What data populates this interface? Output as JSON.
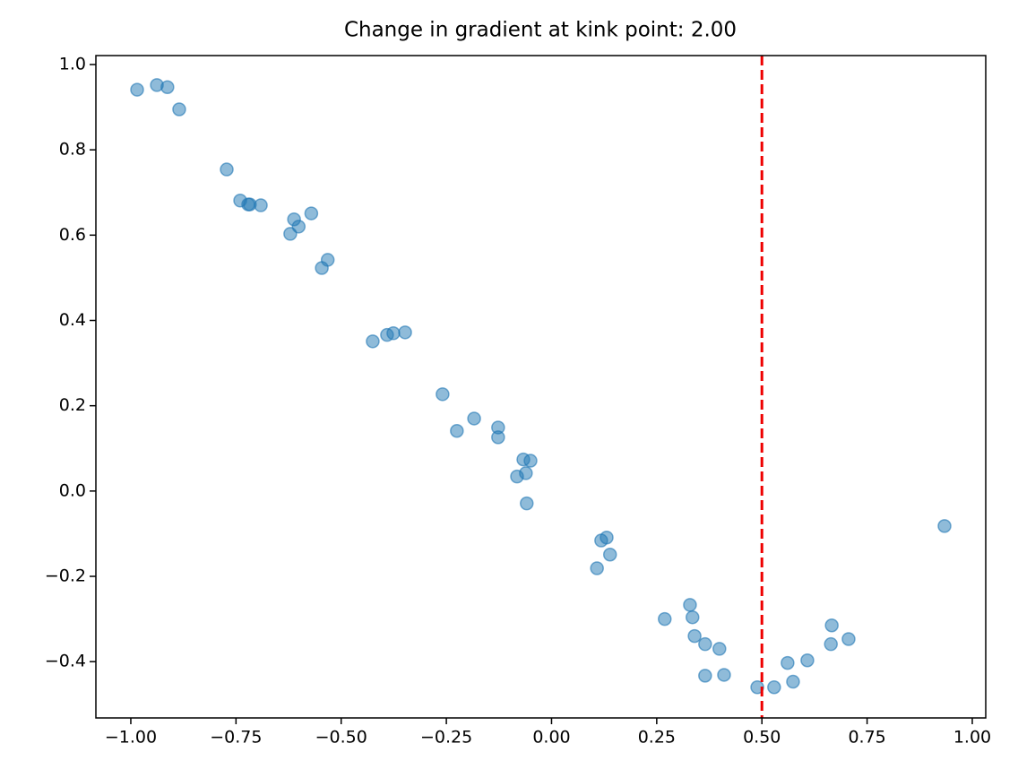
{
  "chart_data": {
    "type": "scatter",
    "title": "Change in gradient at kink point: 2.00",
    "x": [
      -0.985,
      -0.938,
      -0.913,
      -0.885,
      -0.772,
      -0.74,
      -0.721,
      -0.717,
      -0.691,
      -0.612,
      -0.601,
      -0.571,
      -0.621,
      -0.532,
      -0.546,
      -0.425,
      -0.391,
      -0.376,
      -0.348,
      -0.259,
      -0.225,
      -0.184,
      -0.127,
      -0.127,
      -0.067,
      -0.05,
      -0.061,
      -0.082,
      -0.059,
      0.118,
      0.131,
      0.139,
      0.108,
      0.269,
      0.329,
      0.335,
      0.34,
      0.365,
      0.399,
      0.365,
      0.41,
      0.489,
      0.529,
      0.561,
      0.574,
      0.608,
      0.666,
      0.664,
      0.706,
      0.934
    ],
    "values": [
      0.941,
      0.952,
      0.947,
      0.895,
      0.754,
      0.681,
      0.672,
      0.672,
      0.67,
      0.637,
      0.62,
      0.651,
      0.603,
      0.542,
      0.523,
      0.351,
      0.366,
      0.37,
      0.372,
      0.227,
      0.141,
      0.17,
      0.149,
      0.126,
      0.074,
      0.071,
      0.042,
      0.034,
      -0.029,
      -0.116,
      -0.109,
      -0.149,
      -0.181,
      -0.3,
      -0.267,
      -0.296,
      -0.34,
      -0.359,
      -0.37,
      -0.433,
      -0.431,
      -0.46,
      -0.46,
      -0.403,
      -0.447,
      -0.397,
      -0.315,
      -0.359,
      -0.347,
      -0.082
    ],
    "color": "#1f77b4",
    "vline": 0.5,
    "vline_color": "#ee0000",
    "xlim": [
      -1.083,
      1.032
    ],
    "ylim": [
      -0.532,
      1.021
    ],
    "xticks": [
      {
        "value": -1,
        "label": "−1.00"
      },
      {
        "value": -0.75,
        "label": "−0.75"
      },
      {
        "value": -0.5,
        "label": "−0.50"
      },
      {
        "value": -0.25,
        "label": "−0.25"
      },
      {
        "value": 0,
        "label": "0.00"
      },
      {
        "value": 0.25,
        "label": "0.25"
      },
      {
        "value": 0.5,
        "label": "0.50"
      },
      {
        "value": 0.75,
        "label": "0.75"
      },
      {
        "value": 1,
        "label": "1.00"
      }
    ],
    "yticks": [
      {
        "value": -0.4,
        "label": "−0.4"
      },
      {
        "value": -0.2,
        "label": "−0.2"
      },
      {
        "value": 0,
        "label": "0.0"
      },
      0.2,
      0.4,
      0.6,
      0.8,
      {
        "value": 1,
        "label": "1.0"
      }
    ]
  }
}
